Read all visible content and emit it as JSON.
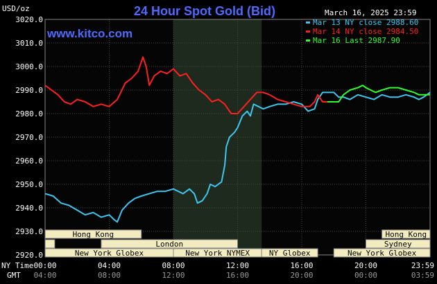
{
  "chart_data": {
    "type": "line",
    "title": "24 Hour Spot Gold (Bid)",
    "brand": "www.kitco.com",
    "date": "March 16, 2025 23:59",
    "ylabel": "USD/oz",
    "ylim": [
      2920,
      3020
    ],
    "y_ticks": [
      "2920.0",
      "2930.0",
      "2940.0",
      "2950.0",
      "2960.0",
      "2970.0",
      "2980.0",
      "2990.0",
      "3000.0",
      "3010.0",
      "3020.0"
    ],
    "x_range_hours": [
      0,
      24
    ],
    "x_ticks_ny": [
      "00:00",
      "04:00",
      "08:00",
      "12:00",
      "16:00",
      "20:00",
      "23:59"
    ],
    "x_ticks_gmt": [
      "04:00",
      "08:00",
      "12:00",
      "16:00",
      "20:00",
      "00:00",
      "03:59"
    ],
    "x_tick_hours": [
      0,
      4,
      8,
      12,
      16,
      20,
      24
    ],
    "row_labels": {
      "ny": "NY Time",
      "gmt": "GMT"
    },
    "shaded_region_hours": [
      8.0,
      13.5
    ],
    "grid": true,
    "legend_position": "top-right",
    "series": [
      {
        "name": "Mar 13 NY close 2988.60",
        "color": "#3ec8f0",
        "points": [
          [
            0,
            2946
          ],
          [
            0.5,
            2945
          ],
          [
            1,
            2942
          ],
          [
            1.5,
            2941
          ],
          [
            2,
            2939
          ],
          [
            2.5,
            2937
          ],
          [
            3,
            2938
          ],
          [
            3.5,
            2936
          ],
          [
            4,
            2937
          ],
          [
            4.3,
            2935
          ],
          [
            4.5,
            2934
          ],
          [
            4.8,
            2939
          ],
          [
            5.2,
            2942
          ],
          [
            5.6,
            2944
          ],
          [
            6,
            2945
          ],
          [
            6.5,
            2946
          ],
          [
            7,
            2947
          ],
          [
            7.5,
            2947
          ],
          [
            8,
            2948
          ],
          [
            8.3,
            2947
          ],
          [
            8.6,
            2946
          ],
          [
            9,
            2948
          ],
          [
            9.3,
            2946
          ],
          [
            9.5,
            2942
          ],
          [
            9.8,
            2943
          ],
          [
            10.1,
            2946
          ],
          [
            10.3,
            2950
          ],
          [
            10.6,
            2949
          ],
          [
            11,
            2951
          ],
          [
            11.2,
            2958
          ],
          [
            11.3,
            2966
          ],
          [
            11.5,
            2970
          ],
          [
            11.8,
            2972
          ],
          [
            12,
            2974
          ],
          [
            12.3,
            2979
          ],
          [
            12.6,
            2981
          ],
          [
            12.8,
            2979
          ],
          [
            13,
            2984
          ],
          [
            13.3,
            2983
          ],
          [
            13.6,
            2982
          ],
          [
            14,
            2983
          ],
          [
            14.5,
            2984
          ],
          [
            15,
            2984
          ],
          [
            15.5,
            2985
          ],
          [
            16,
            2984
          ],
          [
            16.4,
            2981
          ],
          [
            16.8,
            2982
          ],
          [
            17.0,
            2986
          ],
          [
            17.3,
            2989
          ],
          [
            17.6,
            2989
          ],
          [
            18,
            2989
          ],
          [
            18.3,
            2987
          ],
          [
            18.6,
            2987
          ],
          [
            19,
            2986
          ],
          [
            19.5,
            2988
          ],
          [
            20,
            2987
          ],
          [
            20.5,
            2986
          ],
          [
            21,
            2988
          ],
          [
            21.5,
            2987
          ],
          [
            22,
            2987
          ],
          [
            22.5,
            2988
          ],
          [
            23,
            2987
          ],
          [
            23.3,
            2986
          ],
          [
            23.6,
            2987
          ],
          [
            24,
            2989
          ]
        ]
      },
      {
        "name": "Mar 14 NY close 2984.50",
        "color": "#ff2020",
        "points": [
          [
            0,
            2992
          ],
          [
            0.4,
            2990
          ],
          [
            0.8,
            2988
          ],
          [
            1.2,
            2985
          ],
          [
            1.6,
            2984
          ],
          [
            2,
            2986
          ],
          [
            2.5,
            2985
          ],
          [
            3,
            2983
          ],
          [
            3.5,
            2984
          ],
          [
            4,
            2983
          ],
          [
            4.5,
            2986
          ],
          [
            5,
            2993
          ],
          [
            5.4,
            2995
          ],
          [
            5.8,
            2998
          ],
          [
            6.1,
            3004
          ],
          [
            6.3,
            3000
          ],
          [
            6.5,
            2992
          ],
          [
            6.8,
            2996
          ],
          [
            7.2,
            2998
          ],
          [
            7.6,
            2997
          ],
          [
            8,
            2999
          ],
          [
            8.4,
            2996
          ],
          [
            8.8,
            2997
          ],
          [
            9.2,
            2993
          ],
          [
            9.6,
            2990
          ],
          [
            10,
            2988
          ],
          [
            10.4,
            2985
          ],
          [
            10.8,
            2986
          ],
          [
            11.2,
            2984
          ],
          [
            11.6,
            2980
          ],
          [
            12,
            2980
          ],
          [
            12.4,
            2983
          ],
          [
            12.8,
            2986
          ],
          [
            13.2,
            2989
          ],
          [
            13.6,
            2989
          ],
          [
            14,
            2988
          ],
          [
            14.5,
            2986
          ],
          [
            15,
            2985
          ],
          [
            15.5,
            2984
          ],
          [
            16,
            2983
          ],
          [
            16.5,
            2983
          ],
          [
            16.8,
            2985
          ],
          [
            17.0,
            2988
          ],
          [
            17.3,
            2985
          ],
          [
            17.6,
            2985
          ]
        ]
      },
      {
        "name": "Mar 16 Last 2987.90",
        "color": "#30ff30",
        "points": [
          [
            17.6,
            2985
          ],
          [
            18,
            2985
          ],
          [
            18.3,
            2985
          ],
          [
            18.6,
            2988
          ],
          [
            19,
            2990
          ],
          [
            19.5,
            2991
          ],
          [
            19.8,
            2992
          ],
          [
            20,
            2991
          ],
          [
            20.3,
            2990
          ],
          [
            20.6,
            2989
          ],
          [
            21,
            2990
          ],
          [
            21.5,
            2991
          ],
          [
            22,
            2991
          ],
          [
            22.5,
            2990
          ],
          [
            23,
            2989
          ],
          [
            23.3,
            2988
          ],
          [
            23.6,
            2988
          ],
          [
            24,
            2988
          ]
        ]
      }
    ],
    "markets": [
      {
        "label": "Hong Kong",
        "start": 0,
        "end": 6.0,
        "row": 0
      },
      {
        "label": "Hong Kong",
        "start": 21.0,
        "end": 24,
        "row": 0
      },
      {
        "label": "London",
        "start": 0,
        "end": 0.6,
        "row": 1
      },
      {
        "label": "London",
        "start": 3.5,
        "end": 12.0,
        "row": 1
      },
      {
        "label": "Sydney",
        "start": 20.0,
        "end": 24,
        "row": 1
      },
      {
        "label": "New York Globex",
        "start": 0,
        "end": 8.0,
        "row": 2
      },
      {
        "label": "New York NYMEX",
        "start": 8.0,
        "end": 13.5,
        "row": 2
      },
      {
        "label": "NY Globex",
        "start": 13.5,
        "end": 17.0,
        "row": 2
      },
      {
        "label": "New York Globex",
        "start": 18.0,
        "end": 24,
        "row": 2
      }
    ]
  },
  "colors": {
    "background": "#000000",
    "plot_background": "#050505",
    "shaded_region": "#1f2a1f",
    "grid": "#4a4a4a",
    "title": "#4f6bff",
    "market_bar": "#f3ecc0"
  }
}
